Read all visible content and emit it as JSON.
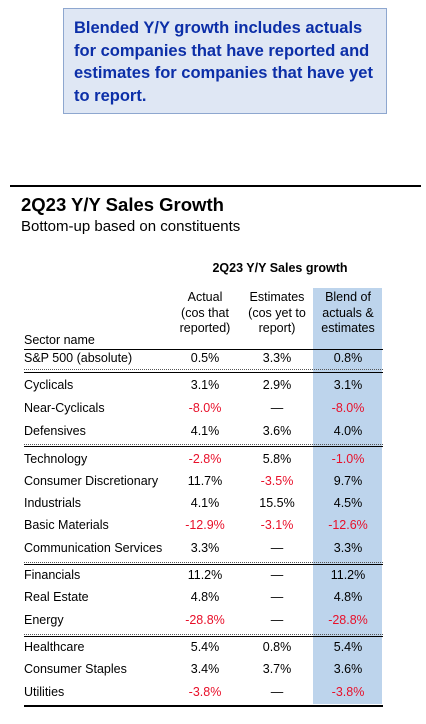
{
  "note": {
    "text": "Blended Y/Y growth includes actuals for companies that have reported and estimates for companies that have yet to report."
  },
  "table": {
    "title": "2Q23 Y/Y Sales Growth",
    "subtitle": "Bottom-up based on constituents",
    "group_header": "2Q23 Y/Y Sales growth",
    "col_sector": "Sector name",
    "col_actual": [
      "Actual",
      "(cos that",
      "reported)"
    ],
    "col_estimates": [
      "Estimates",
      "(cos yet to",
      "report)"
    ],
    "col_blend": [
      "Blend of",
      "actuals &",
      "estimates"
    ],
    "rows": [
      {
        "name": "S&P 500 (absolute)",
        "actual": "0.5%",
        "estimates": "3.3%",
        "blend": "0.8%"
      },
      {
        "name": "Cyclicals",
        "actual": "3.1%",
        "estimates": "2.9%",
        "blend": "3.1%"
      },
      {
        "name": "Near-Cyclicals",
        "actual": "-8.0%",
        "estimates": "—",
        "blend": "-8.0%"
      },
      {
        "name": "Defensives",
        "actual": "4.1%",
        "estimates": "3.6%",
        "blend": "4.0%"
      },
      {
        "name": "Technology",
        "actual": "-2.8%",
        "estimates": "5.8%",
        "blend": "-1.0%"
      },
      {
        "name": "Consumer Discretionary",
        "actual": "11.7%",
        "estimates": "-3.5%",
        "blend": "9.7%"
      },
      {
        "name": "Industrials",
        "actual": "4.1%",
        "estimates": "15.5%",
        "blend": "4.5%"
      },
      {
        "name": "Basic Materials",
        "actual": "-12.9%",
        "estimates": "-3.1%",
        "blend": "-12.6%"
      },
      {
        "name": "Communication Services",
        "actual": "3.3%",
        "estimates": "—",
        "blend": "3.3%"
      },
      {
        "name": "Financials",
        "actual": "11.2%",
        "estimates": "—",
        "blend": "11.2%"
      },
      {
        "name": "Real Estate",
        "actual": "4.8%",
        "estimates": "—",
        "blend": "4.8%"
      },
      {
        "name": "Energy",
        "actual": "-28.8%",
        "estimates": "—",
        "blend": "-28.8%"
      },
      {
        "name": "Healthcare",
        "actual": "5.4%",
        "estimates": "0.8%",
        "blend": "5.4%"
      },
      {
        "name": "Consumer Staples",
        "actual": "3.4%",
        "estimates": "3.7%",
        "blend": "3.6%"
      },
      {
        "name": "Utilities",
        "actual": "-3.8%",
        "estimates": "—",
        "blend": "-3.8%"
      }
    ]
  },
  "colors": {
    "note_text": "#0c2fa8",
    "note_bg": "#dfe7f4",
    "blend_column_bg": "#bdd4ec",
    "negative": "#e8102a"
  }
}
